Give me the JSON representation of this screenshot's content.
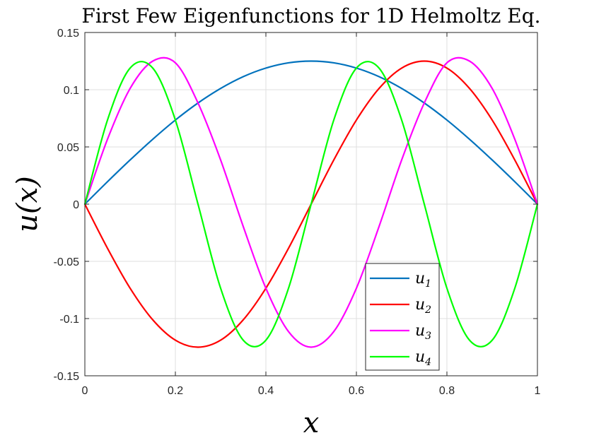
{
  "chart_data": {
    "type": "line",
    "title": "First Few Eigenfunctions for 1D Helmoltz Eq.",
    "xlabel": "x",
    "ylabel": "u(x)",
    "xlim": [
      0,
      1
    ],
    "ylim": [
      -0.15,
      0.15
    ],
    "grid": true,
    "legend_position": "bottom-right",
    "x_ticks": [
      0,
      0.2,
      0.4,
      0.6,
      0.8,
      1
    ],
    "x_tick_labels": [
      "0",
      "0.2",
      "0.4",
      "0.6",
      "0.8",
      "1"
    ],
    "y_ticks": [
      0.15,
      0.1,
      0.05,
      0,
      -0.05,
      -0.1,
      -0.15
    ],
    "y_tick_labels": [
      "0.15",
      "0.1",
      "0.05",
      "0",
      "-0.05",
      "-0.1",
      "-0.15"
    ],
    "x": [
      0,
      0.05,
      0.1,
      0.15,
      0.2,
      0.25,
      0.3,
      0.35,
      0.4,
      0.45,
      0.5,
      0.55,
      0.6,
      0.65,
      0.7,
      0.75,
      0.8,
      0.85,
      0.9,
      0.95,
      1
    ],
    "series": [
      {
        "name": "u1",
        "label_base": "u",
        "label_sub": "1",
        "color": "#0072BD",
        "values": [
          0,
          0.0196,
          0.0386,
          0.0567,
          0.0735,
          0.0884,
          0.1011,
          0.1114,
          0.1189,
          0.1235,
          0.125,
          0.1235,
          0.1189,
          0.1114,
          0.1011,
          0.0884,
          0.0735,
          0.0567,
          0.0386,
          0.0196,
          0
        ]
      },
      {
        "name": "u2",
        "label_base": "u",
        "label_sub": "2",
        "color": "#FF0000",
        "values": [
          0,
          -0.0386,
          -0.0735,
          -0.1011,
          -0.1189,
          -0.125,
          -0.1189,
          -0.1011,
          -0.0735,
          -0.0386,
          0,
          0.0386,
          0.0735,
          0.1011,
          0.1189,
          0.125,
          0.1189,
          0.1011,
          0.0735,
          0.0386,
          0
        ]
      },
      {
        "name": "u3",
        "label_base": "u",
        "label_sub": "3",
        "color": "#FF00FF",
        "values": [
          0,
          0.0567,
          0.1011,
          0.125,
          0.1235,
          0.0884,
          0.0386,
          -0.0196,
          -0.0735,
          -0.1114,
          -0.125,
          -0.1114,
          -0.0735,
          -0.0196,
          0.0386,
          0.0884,
          0.1235,
          0.125,
          0.1011,
          0.0567,
          0
        ]
      },
      {
        "name": "u4",
        "label_base": "u",
        "label_sub": "4",
        "color": "#00FF00",
        "values": [
          0,
          0.0735,
          0.1189,
          0.1189,
          0.0735,
          0,
          -0.0735,
          -0.1189,
          -0.1189,
          -0.0735,
          0,
          0.0735,
          0.1189,
          0.1189,
          0.0735,
          0,
          -0.0735,
          -0.1189,
          -0.1189,
          -0.0735,
          0
        ]
      }
    ]
  }
}
